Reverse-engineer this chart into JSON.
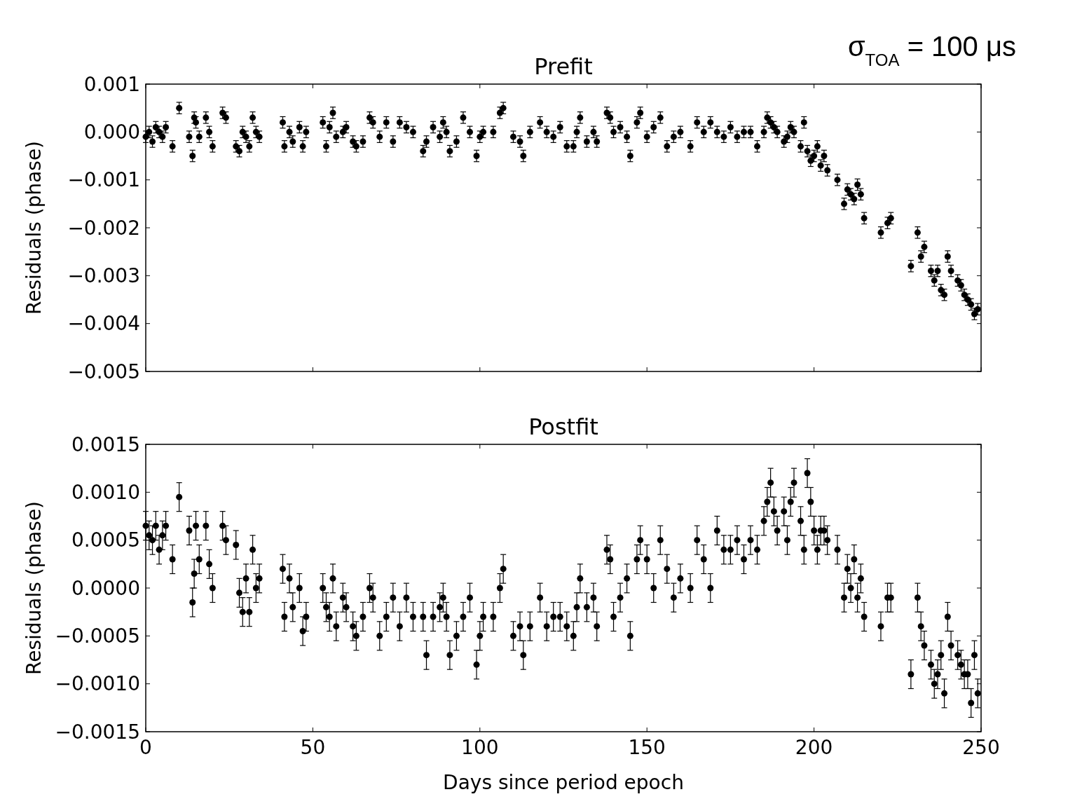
{
  "chart_data": [
    {
      "type": "scatter",
      "title": "Prefit",
      "ylabel": "Residuals (phase)",
      "annotations": [
        "σ$_{TOA}$ = 100 μs"
      ],
      "marker": "circle",
      "grid": false,
      "tick_labels": "y",
      "xlim": [
        0,
        250
      ],
      "xticks": [
        0,
        50,
        100,
        150,
        200,
        250
      ],
      "ylim": [
        -0.005,
        0.001
      ],
      "yticks": [
        {
          "value": 0.001,
          "label": "0.001"
        },
        {
          "value": 0,
          "label": "0.000"
        },
        {
          "value": -0.001,
          "label": "−0.001"
        },
        {
          "value": -0.002,
          "label": "−0.002"
        },
        {
          "value": -0.003,
          "label": "−0.003"
        },
        {
          "value": -0.004,
          "label": "−0.004"
        },
        {
          "value": -0.005,
          "label": "−0.005"
        }
      ],
      "series": [
        {
          "color": "#000000",
          "x": [
            0,
            1,
            2,
            3,
            4,
            5,
            6,
            8,
            10,
            13,
            14,
            14.5,
            15,
            16,
            18,
            19,
            20,
            23,
            24,
            27,
            28,
            29,
            30,
            31,
            32,
            33,
            34,
            41,
            41.5,
            43,
            44,
            46,
            47,
            48,
            53,
            54,
            55,
            56,
            57,
            59,
            60,
            62,
            63,
            65,
            67,
            68,
            70,
            72,
            74,
            76,
            78,
            80,
            83,
            84,
            86,
            88,
            89,
            90,
            91,
            93,
            95,
            97,
            99,
            100,
            101,
            104,
            106,
            107,
            110,
            112,
            113,
            115,
            118,
            120,
            122,
            124,
            126,
            128,
            129,
            130,
            132,
            134,
            135,
            138,
            139,
            140,
            142,
            144,
            145,
            147,
            148,
            150,
            152,
            154,
            156,
            158,
            160,
            163,
            165,
            167,
            169,
            171,
            173,
            175,
            177,
            179,
            181,
            183,
            185,
            186,
            187,
            188,
            189,
            191,
            192,
            193,
            194,
            196,
            197,
            198,
            199,
            200,
            201,
            202,
            203,
            204,
            207,
            209,
            210,
            211,
            212,
            213,
            214,
            215,
            220,
            222,
            223,
            229,
            231,
            232,
            233,
            235,
            236,
            237,
            238,
            239,
            240,
            241,
            243,
            244,
            245,
            246,
            247,
            248,
            249
          ],
          "values": [
            -0.0001,
            0,
            -0.0002,
            0.0001,
            0,
            -0.0001,
            0.0001,
            -0.0003,
            0.0005,
            -0.0001,
            -0.0005,
            0.0003,
            0.0002,
            -0.0001,
            0.0003,
            0,
            -0.0003,
            0.0004,
            0.0003,
            -0.0003,
            -0.0004,
            0,
            -0.0001,
            -0.0003,
            0.0003,
            0,
            -0.0001,
            0.0002,
            -0.0003,
            0,
            -0.0002,
            0.0001,
            -0.0003,
            0,
            0.0002,
            -0.0003,
            0.0001,
            0.0004,
            -0.0001,
            0,
            0.0001,
            -0.0002,
            -0.0003,
            -0.0002,
            0.0003,
            0.0002,
            -0.0001,
            0.0002,
            -0.0002,
            0.0002,
            0.0001,
            0,
            -0.0004,
            -0.0002,
            0.0001,
            -0.0001,
            0.0002,
            0,
            -0.0004,
            -0.0002,
            0.0003,
            0,
            -0.0005,
            -0.0001,
            0,
            0,
            0.0004,
            0.0005,
            -0.0001,
            -0.0002,
            -0.0005,
            0,
            0.0002,
            0,
            -0.0001,
            0.0001,
            -0.0003,
            -0.0003,
            0,
            0.0003,
            -0.0002,
            0,
            -0.0002,
            0.0004,
            0.0003,
            0,
            0.0001,
            -0.0001,
            -0.0005,
            0.0002,
            0.0004,
            -0.0001,
            0.0001,
            0.0003,
            -0.0003,
            -0.0001,
            0,
            -0.0003,
            0.0002,
            0,
            0.0002,
            0,
            -0.0001,
            0.0001,
            -0.0001,
            0,
            0,
            -0.0003,
            0,
            0.0003,
            0.0002,
            0.0001,
            0,
            -0.0002,
            -0.0001,
            0.0001,
            0,
            -0.0003,
            0.0002,
            -0.0004,
            -0.0006,
            -0.0005,
            -0.0003,
            -0.0007,
            -0.0005,
            -0.0008,
            -0.001,
            -0.0015,
            -0.0012,
            -0.0013,
            -0.0014,
            -0.0011,
            -0.0013,
            -0.0018,
            -0.0021,
            -0.0019,
            -0.0018,
            -0.0028,
            -0.0021,
            -0.0026,
            -0.0024,
            -0.0029,
            -0.0031,
            -0.0029,
            -0.0033,
            -0.0034,
            -0.0026,
            -0.0029,
            -0.0031,
            -0.0032,
            -0.0034,
            -0.0035,
            -0.0036,
            -0.0038,
            -0.0037
          ],
          "errors": [
            0.00012,
            0.00012,
            0.00012,
            0.00012,
            0.00012,
            0.00012,
            0.00012,
            0.00012,
            0.00012,
            0.00012,
            0.00012,
            0.00012,
            0.00012,
            0.00012,
            0.00012,
            0.00012,
            0.00012,
            0.00012,
            0.00012,
            0.00012,
            0.00012,
            0.00012,
            0.00012,
            0.00012,
            0.00012,
            0.00012,
            0.00012,
            0.00012,
            0.00012,
            0.00012,
            0.00012,
            0.00012,
            0.00012,
            0.00012,
            0.00012,
            0.00012,
            0.00012,
            0.00012,
            0.00012,
            0.00012,
            0.00012,
            0.00012,
            0.00012,
            0.00012,
            0.00012,
            0.00012,
            0.00012,
            0.00012,
            0.00012,
            0.00012,
            0.00012,
            0.00012,
            0.00012,
            0.00012,
            0.00012,
            0.00012,
            0.00012,
            0.00012,
            0.00012,
            0.00012,
            0.00012,
            0.00012,
            0.00012,
            0.00012,
            0.00012,
            0.00012,
            0.00012,
            0.00012,
            0.00012,
            0.00012,
            0.00012,
            0.00012,
            0.00012,
            0.00012,
            0.00012,
            0.00012,
            0.00012,
            0.00012,
            0.00012,
            0.00012,
            0.00012,
            0.00012,
            0.00012,
            0.00012,
            0.00012,
            0.00012,
            0.00012,
            0.00012,
            0.00012,
            0.00012,
            0.00012,
            0.00012,
            0.00012,
            0.00012,
            0.00012,
            0.00012,
            0.00012,
            0.00012,
            0.00012,
            0.00012,
            0.00012,
            0.00012,
            0.00012,
            0.00012,
            0.00012,
            0.00012,
            0.00012,
            0.00012,
            0.00012,
            0.00012,
            0.00012,
            0.00012,
            0.00012,
            0.00012,
            0.00012,
            0.00012,
            0.00012,
            0.00012,
            0.00012,
            0.00012,
            0.00012,
            0.00012,
            0.00012,
            0.00012,
            0.00012,
            0.00012,
            0.00012,
            0.00012,
            0.00012,
            0.00012,
            0.00012,
            0.00012,
            0.00012,
            0.00012,
            0.00012,
            0.00012,
            0.00012,
            0.00012,
            0.00012,
            0.00012,
            0.00012,
            0.00012,
            0.00012,
            0.00012,
            0.00012,
            0.00012,
            0.00012,
            0.00012,
            0.00012,
            0.00012,
            0.00012,
            0.00012,
            0.00012,
            0.00012,
            0.00012
          ]
        }
      ]
    },
    {
      "type": "scatter",
      "title": "Postfit",
      "ylabel": "Residuals (phase)",
      "xlabel": "Days since period epoch",
      "marker": "circle",
      "grid": false,
      "xlim": [
        0,
        250
      ],
      "xticks": [
        0,
        50,
        100,
        150,
        200,
        250
      ],
      "ylim": [
        -0.0015,
        0.0015
      ],
      "yticks": [
        {
          "value": 0.0015,
          "label": "0.0015"
        },
        {
          "value": 0.001,
          "label": "0.0010"
        },
        {
          "value": 0.0005,
          "label": "0.0005"
        },
        {
          "value": 0,
          "label": "0.0000"
        },
        {
          "value": -0.0005,
          "label": "−0.0005"
        },
        {
          "value": -0.001,
          "label": "−0.0010"
        },
        {
          "value": -0.0015,
          "label": "−0.0015"
        }
      ],
      "series": [
        {
          "color": "#000000",
          "x": [
            0,
            1,
            2,
            3,
            4,
            5,
            6,
            8,
            10,
            13,
            14,
            14.5,
            15,
            16,
            18,
            19,
            20,
            23,
            24,
            27,
            28,
            29,
            30,
            31,
            32,
            33,
            34,
            41,
            41.5,
            43,
            44,
            46,
            47,
            48,
            53,
            54,
            55,
            56,
            57,
            59,
            60,
            62,
            63,
            65,
            67,
            68,
            70,
            72,
            74,
            76,
            78,
            80,
            83,
            84,
            86,
            88,
            89,
            90,
            91,
            93,
            95,
            97,
            99,
            100,
            101,
            104,
            106,
            107,
            110,
            112,
            113,
            115,
            118,
            120,
            122,
            124,
            126,
            128,
            129,
            130,
            132,
            134,
            135,
            138,
            139,
            140,
            142,
            144,
            145,
            147,
            148,
            150,
            152,
            154,
            156,
            158,
            160,
            163,
            165,
            167,
            169,
            171,
            173,
            175,
            177,
            179,
            181,
            183,
            185,
            186,
            187,
            188,
            189,
            191,
            192,
            193,
            194,
            196,
            197,
            198,
            199,
            200,
            201,
            202,
            203,
            204,
            207,
            209,
            210,
            211,
            212,
            213,
            214,
            215,
            220,
            222,
            223,
            229,
            231,
            232,
            233,
            235,
            236,
            237,
            238,
            239,
            240,
            241,
            243,
            244,
            245,
            246,
            247,
            248,
            249
          ],
          "values": [
            0.00065,
            0.00055,
            0.0005,
            0.00065,
            0.0004,
            0.00055,
            0.00065,
            0.0003,
            0.00095,
            0.0006,
            -0.00015,
            0.00015,
            0.00065,
            0.0003,
            0.00065,
            0.00025,
            0,
            0.00065,
            0.0005,
            0.00045,
            -5e-05,
            -0.00025,
            0.0001,
            -0.00025,
            0.0004,
            0,
            0.0001,
            0.0002,
            -0.0003,
            0.0001,
            -0.0002,
            0,
            -0.00045,
            -0.0003,
            0,
            -0.0002,
            -0.0003,
            0.0001,
            -0.0004,
            -0.0001,
            -0.0002,
            -0.0004,
            -0.0005,
            -0.0003,
            0,
            -0.0001,
            -0.0005,
            -0.0003,
            -0.0001,
            -0.0004,
            -0.0001,
            -0.0003,
            -0.0003,
            -0.0007,
            -0.0003,
            -0.0002,
            -0.0001,
            -0.0003,
            -0.0007,
            -0.0005,
            -0.0003,
            -0.0001,
            -0.0008,
            -0.0005,
            -0.0003,
            -0.0003,
            0,
            0.0002,
            -0.0005,
            -0.0004,
            -0.0007,
            -0.0004,
            -0.0001,
            -0.0004,
            -0.0003,
            -0.0003,
            -0.0004,
            -0.0005,
            -0.0002,
            0.0001,
            -0.0002,
            -0.0001,
            -0.0004,
            0.0004,
            0.0003,
            -0.0003,
            -0.0001,
            0.0001,
            -0.0005,
            0.0003,
            0.0005,
            0.0003,
            0,
            0.0005,
            0.0002,
            -0.0001,
            0.0001,
            0,
            0.0005,
            0.0003,
            0,
            0.0006,
            0.0004,
            0.0004,
            0.0005,
            0.0003,
            0.0005,
            0.0004,
            0.0007,
            0.0009,
            0.0011,
            0.0008,
            0.0006,
            0.0008,
            0.0005,
            0.0009,
            0.0011,
            0.0007,
            0.0004,
            0.0012,
            0.0009,
            0.0006,
            0.0004,
            0.0006,
            0.0006,
            0.0005,
            0.0004,
            -0.0001,
            0.0002,
            0,
            0.0003,
            -0.0001,
            0.0001,
            -0.0003,
            -0.0004,
            -0.0001,
            -0.0001,
            -0.0009,
            -0.0001,
            -0.0004,
            -0.0006,
            -0.0008,
            -0.001,
            -0.0009,
            -0.0007,
            -0.0011,
            -0.0003,
            -0.0006,
            -0.0007,
            -0.0008,
            -0.0009,
            -0.0009,
            -0.0012,
            -0.0007,
            -0.0011
          ],
          "errors": [
            0.00015,
            0.00015,
            0.00015,
            0.00015,
            0.00015,
            0.00015,
            0.00015,
            0.00015,
            0.00015,
            0.00015,
            0.00015,
            0.00015,
            0.00015,
            0.00015,
            0.00015,
            0.00015,
            0.00015,
            0.00015,
            0.00015,
            0.00015,
            0.00015,
            0.00015,
            0.00015,
            0.00015,
            0.00015,
            0.00015,
            0.00015,
            0.00015,
            0.00015,
            0.00015,
            0.00015,
            0.00015,
            0.00015,
            0.00015,
            0.00015,
            0.00015,
            0.00015,
            0.00015,
            0.00015,
            0.00015,
            0.00015,
            0.00015,
            0.00015,
            0.00015,
            0.00015,
            0.00015,
            0.00015,
            0.00015,
            0.00015,
            0.00015,
            0.00015,
            0.00015,
            0.00015,
            0.00015,
            0.00015,
            0.00015,
            0.00015,
            0.00015,
            0.00015,
            0.00015,
            0.00015,
            0.00015,
            0.00015,
            0.00015,
            0.00015,
            0.00015,
            0.00015,
            0.00015,
            0.00015,
            0.00015,
            0.00015,
            0.00015,
            0.00015,
            0.00015,
            0.00015,
            0.00015,
            0.00015,
            0.00015,
            0.00015,
            0.00015,
            0.00015,
            0.00015,
            0.00015,
            0.00015,
            0.00015,
            0.00015,
            0.00015,
            0.00015,
            0.00015,
            0.00015,
            0.00015,
            0.00015,
            0.00015,
            0.00015,
            0.00015,
            0.00015,
            0.00015,
            0.00015,
            0.00015,
            0.00015,
            0.00015,
            0.00015,
            0.00015,
            0.00015,
            0.00015,
            0.00015,
            0.00015,
            0.00015,
            0.00015,
            0.00015,
            0.00015,
            0.00015,
            0.00015,
            0.00015,
            0.00015,
            0.00015,
            0.00015,
            0.00015,
            0.00015,
            0.00015,
            0.00015,
            0.00015,
            0.00015,
            0.00015,
            0.00015,
            0.00015,
            0.00015,
            0.00015,
            0.00015,
            0.00015,
            0.00015,
            0.00015,
            0.00015,
            0.00015,
            0.00015,
            0.00015,
            0.00015,
            0.00015,
            0.00015,
            0.00015,
            0.00015,
            0.00015,
            0.00015,
            0.00015,
            0.00015,
            0.00015,
            0.00015,
            0.00015,
            0.00015,
            0.00015,
            0.00015,
            0.00015,
            0.00015,
            0.00015,
            0.00015
          ]
        }
      ]
    }
  ]
}
